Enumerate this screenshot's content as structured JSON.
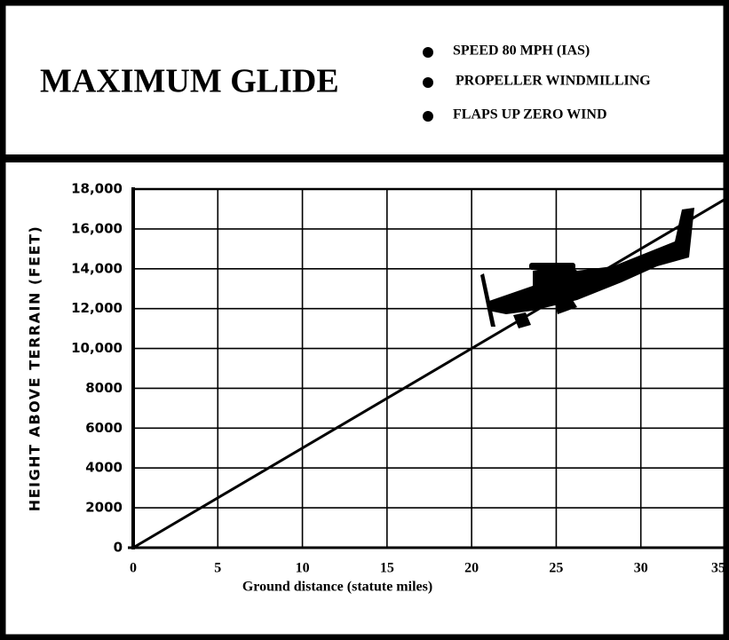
{
  "chart_data": {
    "type": "line",
    "title": "MAXIMUM GLIDE",
    "notes": [
      "SPEED  80 MPH  (IAS)",
      "PROPELLER WINDMILLING",
      "FLAPS UP   ZERO WIND"
    ],
    "x_label": "Ground distance (statute miles)",
    "y_label": "HEIGHT  ABOVE TERRAIN  (FEET)",
    "series": [
      {
        "x": [
          0,
          35
        ],
        "values": [
          0,
          17500
        ],
        "color": "#000000"
      }
    ],
    "xlim": [
      0,
      35
    ],
    "ylim": [
      0,
      18000
    ],
    "xticks": [
      0,
      5,
      10,
      15,
      20,
      25,
      30,
      35
    ],
    "yticks": [
      0,
      2000,
      4000,
      6000,
      8000,
      {
        "value": 10000,
        "label": "10,000"
      },
      {
        "value": 12000,
        "label": "12,000"
      },
      {
        "value": 14000,
        "label": "14,000"
      },
      {
        "value": 16000,
        "label": "16,000"
      },
      {
        "value": 18000,
        "label": "18,000"
      }
    ],
    "grid": true
  }
}
